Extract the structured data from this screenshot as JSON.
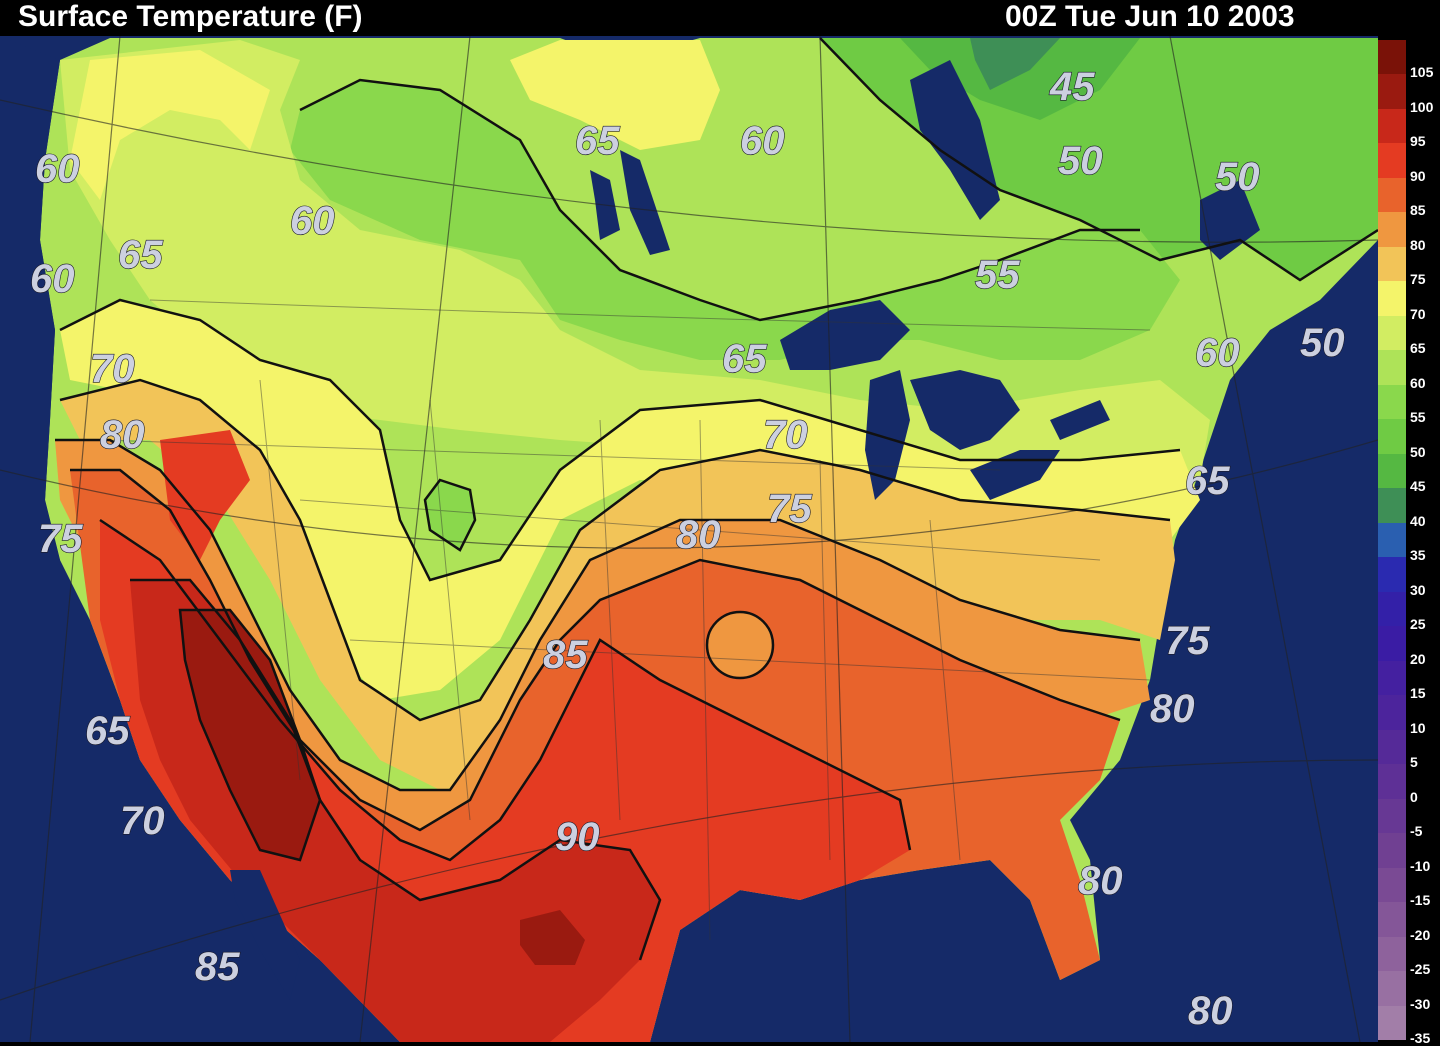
{
  "header": {
    "title": "Surface Temperature (F)",
    "valid_time": "00Z Tue Jun 10 2003"
  },
  "colors": {
    "ocean": "#152a68",
    "band_35_40": "#3e8f56",
    "band_40_45": "#55b842",
    "band_45_50": "#6fcb44",
    "band_50_55": "#8ad84c",
    "band_55_60": "#aee358",
    "band_60_65": "#d2ed62",
    "band_65_70": "#f4f46a",
    "band_70_75": "#f2c458",
    "band_75_80": "#ef9740",
    "band_80_85": "#e8632c",
    "band_85_90": "#e43b22",
    "band_90_95": "#c8281a",
    "band_95_100": "#9a1a10"
  },
  "legend": [
    {
      "label": "105",
      "color": "#7a1208"
    },
    {
      "label": "100",
      "color": "#9a1a10"
    },
    {
      "label": "95",
      "color": "#c8281a"
    },
    {
      "label": "90",
      "color": "#e43b22"
    },
    {
      "label": "85",
      "color": "#e8632c"
    },
    {
      "label": "80",
      "color": "#ef9740"
    },
    {
      "label": "75",
      "color": "#f2c458"
    },
    {
      "label": "70",
      "color": "#f4f46a"
    },
    {
      "label": "65",
      "color": "#d2ed62"
    },
    {
      "label": "60",
      "color": "#aee358"
    },
    {
      "label": "55",
      "color": "#8ad84c"
    },
    {
      "label": "50",
      "color": "#6fcb44"
    },
    {
      "label": "45",
      "color": "#55b842"
    },
    {
      "label": "40",
      "color": "#3e8f56"
    },
    {
      "label": "35",
      "color": "#2a5fb0"
    },
    {
      "label": "30",
      "color": "#2a2ab0"
    },
    {
      "label": "25",
      "color": "#3320a8"
    },
    {
      "label": "20",
      "color": "#3a1ca4"
    },
    {
      "label": "15",
      "color": "#4420a0"
    },
    {
      "label": "10",
      "color": "#4c249c"
    },
    {
      "label": "5",
      "color": "#552a98"
    },
    {
      "label": "0",
      "color": "#5e3096"
    },
    {
      "label": "-5",
      "color": "#673894"
    },
    {
      "label": "-10",
      "color": "#704092"
    },
    {
      "label": "-15",
      "color": "#7a4a94"
    },
    {
      "label": "-20",
      "color": "#845698"
    },
    {
      "label": "-25",
      "color": "#8e629c"
    },
    {
      "label": "-30",
      "color": "#9870a2"
    },
    {
      "label": "-35",
      "color": "#a27ea8"
    }
  ],
  "contour_labels": {
    "l01": "60",
    "l02": "60",
    "l03": "65",
    "l04": "70",
    "l05": "80",
    "l06": "75",
    "l07": "65",
    "l08": "70",
    "l09": "85",
    "l10": "60",
    "l11": "65",
    "l12": "60",
    "l13": "45",
    "l14": "50",
    "l15": "50",
    "l16": "55",
    "l17": "65",
    "l18": "70",
    "l19": "75",
    "l20": "80",
    "l21": "85",
    "l22": "90",
    "l23": "60",
    "l24": "50",
    "l25": "65",
    "l26": "75",
    "l27": "80",
    "l28": "80",
    "l29": "80"
  }
}
